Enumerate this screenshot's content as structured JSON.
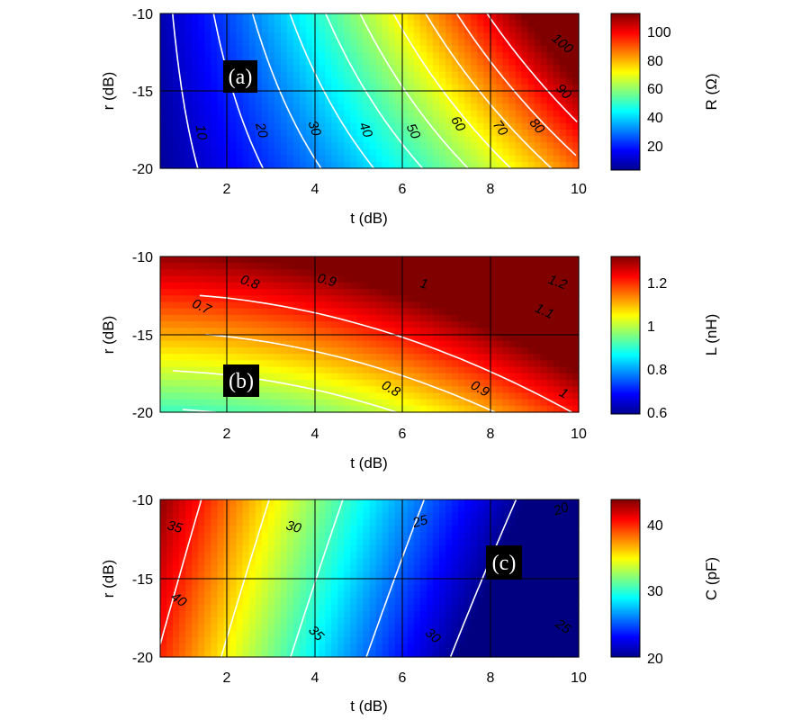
{
  "chart_data": [
    {
      "type": "heatmap",
      "panel_label": "(a)",
      "xlabel": "t (dB)",
      "ylabel": "r (dB)",
      "colorbar_label": "R (Ω)",
      "xlim": [
        0.5,
        10
      ],
      "ylim": [
        -20,
        -10
      ],
      "x_ticks": [
        "2",
        "4",
        "6",
        "8",
        "10"
      ],
      "y_ticks": [
        "-10",
        "-15",
        "-20"
      ],
      "colorbar_range": [
        2,
        112
      ],
      "colorbar_ticks": [
        "20",
        "40",
        "60",
        "80",
        "100"
      ],
      "contour_labels": [
        "10",
        "20",
        "30",
        "40",
        "50",
        "60",
        "70",
        "80",
        "90",
        "100"
      ],
      "grid": true,
      "colormap": "jet"
    },
    {
      "type": "heatmap",
      "panel_label": "(b)",
      "xlabel": "t (dB)",
      "ylabel": "r (dB)",
      "colorbar_label": "L (nH)",
      "xlim": [
        0.5,
        10
      ],
      "ylim": [
        -20,
        -10
      ],
      "x_ticks": [
        "2",
        "4",
        "6",
        "8",
        "10"
      ],
      "y_ticks": [
        "-10",
        "-15",
        "-20"
      ],
      "colorbar_range": [
        0.57,
        1.31
      ],
      "colorbar_ticks": [
        "0.6",
        "0.8",
        "1",
        "1.2"
      ],
      "contour_labels": [
        "0.7",
        "0.8",
        "0.9",
        "1",
        "1.1",
        "1.2",
        "0.8",
        "0.9",
        "1"
      ],
      "grid": true,
      "colormap": "jet"
    },
    {
      "type": "heatmap",
      "panel_label": "(c)",
      "xlabel": "t (dB)",
      "ylabel": "r (dB)",
      "colorbar_label": "C (pF)",
      "xlim": [
        0.5,
        10
      ],
      "ylim": [
        -20,
        -10
      ],
      "x_ticks": [
        "2",
        "4",
        "6",
        "8",
        "10"
      ],
      "y_ticks": [
        "-10",
        "-15",
        "-20"
      ],
      "colorbar_range": [
        19.5,
        43.5
      ],
      "colorbar_ticks": [
        "20",
        "30",
        "40"
      ],
      "contour_labels": [
        "35",
        "30",
        "25",
        "20",
        "40",
        "35",
        "30",
        "25"
      ],
      "grid": true,
      "colormap": "jet"
    }
  ]
}
